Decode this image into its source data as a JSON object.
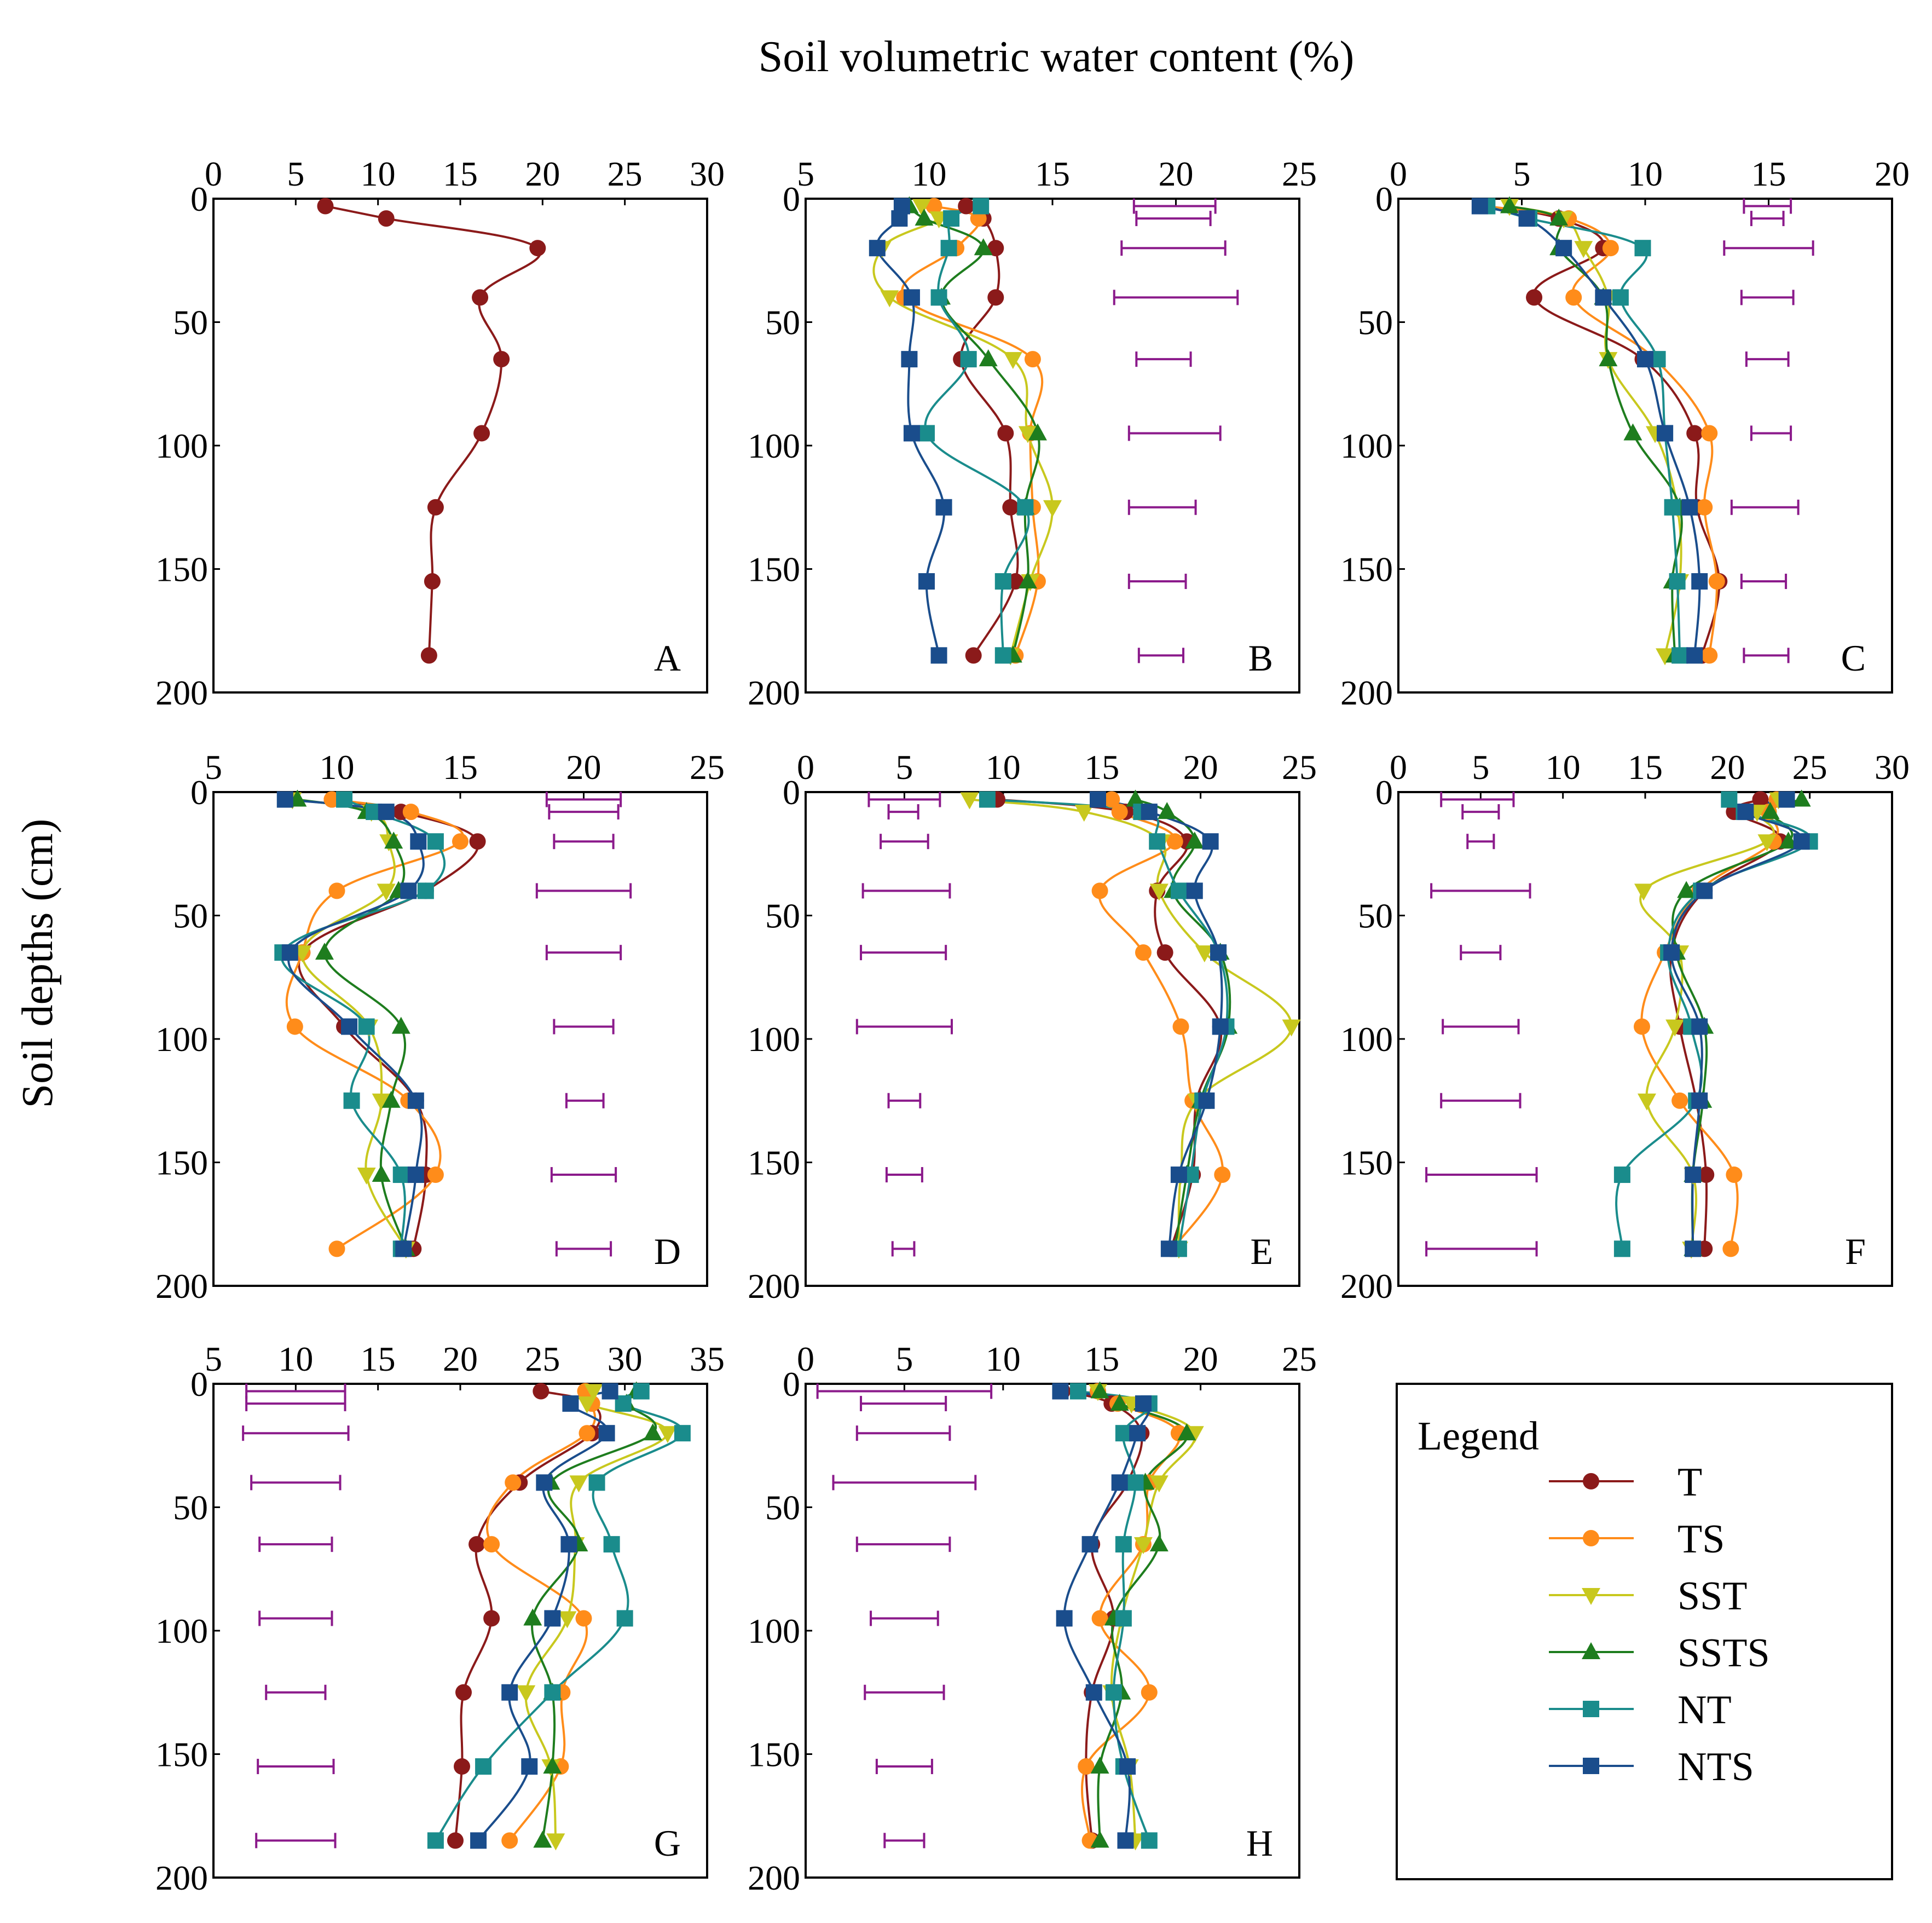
{
  "title": "Soil volumetric water content (%)",
  "ylabel": "Soil depths (cm)",
  "legend": {
    "title": "Legend",
    "items": [
      {
        "name": "T",
        "color": "#8B1A1A",
        "marker": "circle"
      },
      {
        "name": "TS",
        "color": "#FF8C1A",
        "marker": "circle"
      },
      {
        "name": "SST",
        "color": "#C8C81E",
        "marker": "triangle-down"
      },
      {
        "name": "SSTS",
        "color": "#1E7D1E",
        "marker": "triangle-up"
      },
      {
        "name": "NT",
        "color": "#1A8C8C",
        "marker": "square"
      },
      {
        "name": "NTS",
        "color": "#1A4D8C",
        "marker": "square"
      }
    ]
  },
  "errorbar_color": "#8B1A8B",
  "chart_data": [
    {
      "panel": "A",
      "type": "line",
      "xlim": [
        0,
        30
      ],
      "xticks": [
        0,
        5,
        10,
        15,
        20,
        25,
        30
      ],
      "ylim": [
        0,
        200
      ],
      "yticks": [
        0,
        50,
        100,
        150,
        200
      ],
      "depths": [
        3,
        8,
        20,
        40,
        65,
        95,
        125,
        155,
        185
      ],
      "series": [
        {
          "name": "T",
          "values": [
            6.8,
            10.5,
            19.7,
            16.2,
            17.5,
            16.3,
            13.5,
            13.3,
            13.1
          ]
        }
      ],
      "errorbars": []
    },
    {
      "panel": "B",
      "type": "line",
      "xlim": [
        5,
        25
      ],
      "xticks": [
        5,
        10,
        15,
        20,
        25
      ],
      "ylim": [
        0,
        200
      ],
      "yticks": [
        0,
        50,
        100,
        150,
        200
      ],
      "depths": [
        3,
        8,
        20,
        40,
        65,
        95,
        125,
        155,
        185
      ],
      "series": [
        {
          "name": "T",
          "values": [
            11.5,
            12.2,
            12.7,
            12.7,
            11.3,
            13.1,
            13.3,
            13.5,
            11.8
          ]
        },
        {
          "name": "TS",
          "values": [
            10.2,
            12.0,
            11.1,
            9.0,
            14.2,
            14.1,
            14.2,
            14.4,
            13.5
          ]
        },
        {
          "name": "SST",
          "values": [
            9.7,
            10.4,
            8.1,
            8.4,
            13.4,
            14.0,
            15.0,
            14.1,
            13.3
          ]
        },
        {
          "name": "SSTS",
          "values": [
            9.2,
            9.8,
            12.2,
            10.5,
            12.4,
            14.4,
            13.9,
            14.0,
            13.4
          ]
        },
        {
          "name": "NT",
          "values": [
            12.1,
            10.9,
            10.8,
            10.4,
            11.6,
            9.9,
            13.9,
            13.0,
            13.0
          ]
        },
        {
          "name": "NTS",
          "values": [
            8.9,
            8.8,
            7.9,
            9.3,
            9.2,
            9.3,
            10.6,
            9.9,
            10.4
          ]
        }
      ],
      "errorbars": [
        [
          18.3,
          21.6,
          3
        ],
        [
          18.4,
          21.4,
          8
        ],
        [
          17.8,
          22.0,
          20
        ],
        [
          17.5,
          22.5,
          40
        ],
        [
          18.4,
          20.6,
          65
        ],
        [
          18.1,
          21.8,
          95
        ],
        [
          18.1,
          20.8,
          125
        ],
        [
          18.1,
          20.4,
          155
        ],
        [
          18.5,
          20.3,
          185
        ]
      ]
    },
    {
      "panel": "C",
      "type": "line",
      "xlim": [
        0,
        20
      ],
      "xticks": [
        0,
        5,
        10,
        15,
        20
      ],
      "ylim": [
        0,
        200
      ],
      "yticks": [
        0,
        50,
        100,
        150,
        200
      ],
      "depths": [
        3,
        8,
        20,
        40,
        65,
        95,
        125,
        155,
        185
      ],
      "series": [
        {
          "name": "T",
          "values": [
            3.4,
            6.5,
            8.3,
            5.5,
            9.9,
            12.0,
            12.1,
            13.0,
            12.3
          ]
        },
        {
          "name": "TS",
          "values": [
            3.5,
            6.9,
            8.6,
            7.1,
            10.4,
            12.6,
            12.4,
            12.9,
            12.6
          ]
        },
        {
          "name": "SST",
          "values": [
            4.5,
            6.7,
            7.5,
            8.5,
            8.5,
            10.4,
            11.3,
            11.4,
            10.8
          ]
        },
        {
          "name": "SSTS",
          "values": [
            4.5,
            6.5,
            6.5,
            8.3,
            8.5,
            9.5,
            11.4,
            11.1,
            11.2
          ]
        },
        {
          "name": "NT",
          "values": [
            3.6,
            5.3,
            9.9,
            9.0,
            10.5,
            10.8,
            11.1,
            11.3,
            11.4
          ]
        },
        {
          "name": "NTS",
          "values": [
            3.3,
            5.2,
            6.7,
            8.3,
            10.0,
            10.8,
            11.8,
            12.2,
            12.0
          ]
        }
      ],
      "errorbars": [
        [
          14.0,
          15.9,
          3
        ],
        [
          14.3,
          15.6,
          8
        ],
        [
          13.2,
          16.8,
          20
        ],
        [
          13.9,
          16.0,
          40
        ],
        [
          14.1,
          15.8,
          65
        ],
        [
          14.3,
          15.9,
          95
        ],
        [
          13.5,
          16.2,
          125
        ],
        [
          13.9,
          15.7,
          155
        ],
        [
          14.0,
          15.8,
          185
        ]
      ]
    },
    {
      "panel": "D",
      "type": "line",
      "xlim": [
        5,
        25
      ],
      "xticks": [
        5,
        10,
        15,
        20,
        25
      ],
      "ylim": [
        0,
        200
      ],
      "yticks": [
        0,
        50,
        100,
        150,
        200
      ],
      "depths": [
        3,
        8,
        20,
        40,
        65,
        95,
        125,
        155,
        185
      ],
      "series": [
        {
          "name": "T",
          "values": [
            9.8,
            12.6,
            15.7,
            13.6,
            8.6,
            10.3,
            13.2,
            13.6,
            13.1
          ]
        },
        {
          "name": "TS",
          "values": [
            9.8,
            13.0,
            15.0,
            10.0,
            8.6,
            8.3,
            12.9,
            14.0,
            10.0
          ]
        },
        {
          "name": "SST",
          "values": [
            8.2,
            11.4,
            12.1,
            12.0,
            8.6,
            11.3,
            11.8,
            11.2,
            12.8
          ]
        },
        {
          "name": "SSTS",
          "values": [
            8.4,
            11.2,
            12.3,
            12.5,
            9.5,
            12.6,
            12.2,
            11.8,
            12.8
          ]
        },
        {
          "name": "NT",
          "values": [
            10.3,
            11.5,
            14.0,
            13.6,
            7.8,
            11.2,
            10.6,
            12.6,
            12.6
          ]
        },
        {
          "name": "NTS",
          "values": [
            7.9,
            12.0,
            13.3,
            12.9,
            8.1,
            10.5,
            13.2,
            13.2,
            12.7
          ]
        }
      ],
      "errorbars": [
        [
          18.5,
          21.5,
          3
        ],
        [
          18.6,
          21.4,
          8
        ],
        [
          18.8,
          21.2,
          20
        ],
        [
          18.1,
          21.9,
          40
        ],
        [
          18.5,
          21.5,
          65
        ],
        [
          18.8,
          21.2,
          95
        ],
        [
          19.3,
          20.8,
          125
        ],
        [
          18.7,
          21.3,
          155
        ],
        [
          18.9,
          21.1,
          185
        ]
      ]
    },
    {
      "panel": "E",
      "type": "line",
      "xlim": [
        0,
        25
      ],
      "xticks": [
        0,
        5,
        10,
        15,
        20,
        25
      ],
      "ylim": [
        0,
        200
      ],
      "yticks": [
        0,
        50,
        100,
        150,
        200
      ],
      "depths": [
        3,
        8,
        20,
        40,
        65,
        95,
        125,
        155,
        185
      ],
      "series": [
        {
          "name": "T",
          "values": [
            9.7,
            16.2,
            19.3,
            17.8,
            18.2,
            21.0,
            19.8,
            19.6,
            18.5
          ]
        },
        {
          "name": "TS",
          "values": [
            15.5,
            15.9,
            18.7,
            14.9,
            17.1,
            19.0,
            19.6,
            21.1,
            18.6
          ]
        },
        {
          "name": "SST",
          "values": [
            8.3,
            14.1,
            18.0,
            17.9,
            20.2,
            24.6,
            19.8,
            19.0,
            18.9
          ]
        },
        {
          "name": "SSTS",
          "values": [
            16.7,
            18.3,
            19.7,
            18.6,
            21.0,
            21.4,
            20.0,
            19.3,
            18.7
          ]
        },
        {
          "name": "NT",
          "values": [
            9.2,
            17.0,
            17.8,
            18.9,
            20.9,
            21.3,
            20.1,
            19.5,
            18.9
          ]
        },
        {
          "name": "NTS",
          "values": [
            14.8,
            17.4,
            20.5,
            19.7,
            20.9,
            21.0,
            20.3,
            18.9,
            18.4
          ]
        }
      ],
      "errorbars": [
        [
          3.2,
          6.8,
          3
        ],
        [
          4.2,
          5.7,
          8
        ],
        [
          3.8,
          6.2,
          20
        ],
        [
          2.9,
          7.3,
          40
        ],
        [
          2.8,
          7.1,
          65
        ],
        [
          2.6,
          7.4,
          95
        ],
        [
          4.2,
          5.8,
          125
        ],
        [
          4.1,
          5.9,
          155
        ],
        [
          4.4,
          5.5,
          185
        ]
      ]
    },
    {
      "panel": "F",
      "type": "line",
      "xlim": [
        0,
        30
      ],
      "xticks": [
        0,
        5,
        10,
        15,
        20,
        25,
        30
      ],
      "ylim": [
        0,
        200
      ],
      "yticks": [
        0,
        50,
        100,
        150,
        200
      ],
      "depths": [
        3,
        8,
        20,
        40,
        65,
        95,
        125,
        155,
        185
      ],
      "series": [
        {
          "name": "T",
          "values": [
            22.0,
            20.4,
            23.2,
            18.6,
            16.6,
            17.1,
            18.1,
            18.7,
            18.6
          ]
        },
        {
          "name": "TS",
          "values": [
            23.0,
            22.5,
            22.8,
            18.3,
            16.2,
            14.8,
            17.1,
            20.4,
            20.2
          ]
        },
        {
          "name": "SST",
          "values": [
            23.1,
            21.8,
            22.4,
            14.9,
            17.1,
            16.8,
            15.1,
            17.9,
            17.8
          ]
        },
        {
          "name": "SSTS",
          "values": [
            24.5,
            22.6,
            23.7,
            17.5,
            16.9,
            18.6,
            18.5,
            17.9,
            17.9
          ]
        },
        {
          "name": "NT",
          "values": [
            20.1,
            21.0,
            25.0,
            18.4,
            16.4,
            17.8,
            18.1,
            13.6,
            13.6
          ]
        },
        {
          "name": "NTS",
          "values": [
            23.6,
            21.1,
            24.5,
            18.6,
            16.6,
            18.3,
            18.3,
            17.9,
            17.9
          ]
        }
      ],
      "errorbars": [
        [
          2.6,
          7.0,
          3
        ],
        [
          3.9,
          6.1,
          8
        ],
        [
          4.2,
          5.8,
          20
        ],
        [
          2.0,
          8.0,
          40
        ],
        [
          3.8,
          6.2,
          65
        ],
        [
          2.7,
          7.3,
          95
        ],
        [
          2.6,
          7.4,
          125
        ],
        [
          1.7,
          8.4,
          155
        ],
        [
          1.7,
          8.4,
          185
        ]
      ]
    },
    {
      "panel": "G",
      "type": "line",
      "xlim": [
        5,
        35
      ],
      "xticks": [
        5,
        10,
        15,
        20,
        25,
        30,
        35
      ],
      "ylim": [
        0,
        200
      ],
      "yticks": [
        0,
        50,
        100,
        150,
        200
      ],
      "depths": [
        3,
        8,
        20,
        40,
        65,
        95,
        125,
        155,
        185
      ],
      "series": [
        {
          "name": "T",
          "values": [
            24.9,
            28.0,
            28.0,
            23.6,
            21.0,
            21.9,
            20.2,
            20.1,
            19.7
          ]
        },
        {
          "name": "TS",
          "values": [
            27.6,
            28.0,
            27.7,
            23.2,
            21.9,
            27.5,
            26.2,
            26.1,
            23.0
          ]
        },
        {
          "name": "SST",
          "values": [
            28.1,
            27.7,
            32.6,
            27.2,
            27.0,
            26.5,
            24.0,
            25.5,
            25.8
          ]
        },
        {
          "name": "SSTS",
          "values": [
            30.7,
            30.1,
            31.7,
            25.5,
            27.2,
            24.4,
            25.6,
            25.6,
            25.0
          ]
        },
        {
          "name": "NT",
          "values": [
            31.0,
            29.9,
            33.5,
            28.3,
            29.2,
            30.0,
            25.6,
            21.4,
            18.5
          ]
        },
        {
          "name": "NTS",
          "values": [
            29.1,
            26.7,
            28.9,
            25.1,
            26.6,
            25.6,
            23.0,
            24.2,
            21.1
          ]
        }
      ],
      "errorbars": [
        [
          7.0,
          13.0,
          3
        ],
        [
          7.0,
          13.0,
          8
        ],
        [
          6.8,
          13.2,
          20
        ],
        [
          7.3,
          12.7,
          40
        ],
        [
          7.8,
          12.2,
          65
        ],
        [
          7.8,
          12.2,
          95
        ],
        [
          8.2,
          11.8,
          125
        ],
        [
          7.7,
          12.3,
          155
        ],
        [
          7.6,
          12.4,
          185
        ]
      ]
    },
    {
      "panel": "H",
      "type": "line",
      "xlim": [
        0,
        25
      ],
      "xticks": [
        0,
        5,
        10,
        15,
        20,
        25
      ],
      "ylim": [
        0,
        200
      ],
      "yticks": [
        0,
        50,
        100,
        150,
        200
      ],
      "depths": [
        3,
        8,
        20,
        40,
        65,
        95,
        125,
        155,
        185
      ],
      "series": [
        {
          "name": "T",
          "values": [
            13.0,
            15.5,
            17.0,
            16.3,
            14.5,
            15.6,
            14.5,
            14.2,
            14.5
          ]
        },
        {
          "name": "TS",
          "values": [
            14.8,
            15.8,
            18.9,
            17.4,
            17.1,
            14.9,
            17.4,
            14.2,
            14.4
          ]
        },
        {
          "name": "SST",
          "values": [
            14.8,
            16.5,
            19.7,
            17.9,
            17.1,
            16.0,
            15.5,
            16.4,
            16.7
          ]
        },
        {
          "name": "SSTS",
          "values": [
            14.9,
            15.9,
            19.3,
            17.2,
            17.9,
            15.6,
            16.0,
            14.9,
            14.9
          ]
        },
        {
          "name": "NT",
          "values": [
            13.8,
            17.4,
            16.1,
            16.7,
            16.1,
            16.1,
            15.6,
            16.1,
            17.4
          ]
        },
        {
          "name": "NTS",
          "values": [
            12.9,
            17.1,
            16.8,
            15.9,
            14.4,
            13.1,
            14.6,
            16.3,
            16.2
          ]
        }
      ],
      "errorbars": [
        [
          0.6,
          9.4,
          3
        ],
        [
          2.8,
          7.1,
          8
        ],
        [
          2.6,
          7.3,
          20
        ],
        [
          1.4,
          8.6,
          40
        ],
        [
          2.6,
          7.3,
          65
        ],
        [
          3.3,
          6.7,
          95
        ],
        [
          3.0,
          7.0,
          125
        ],
        [
          3.6,
          6.4,
          155
        ],
        [
          4.0,
          6.0,
          185
        ]
      ]
    }
  ]
}
